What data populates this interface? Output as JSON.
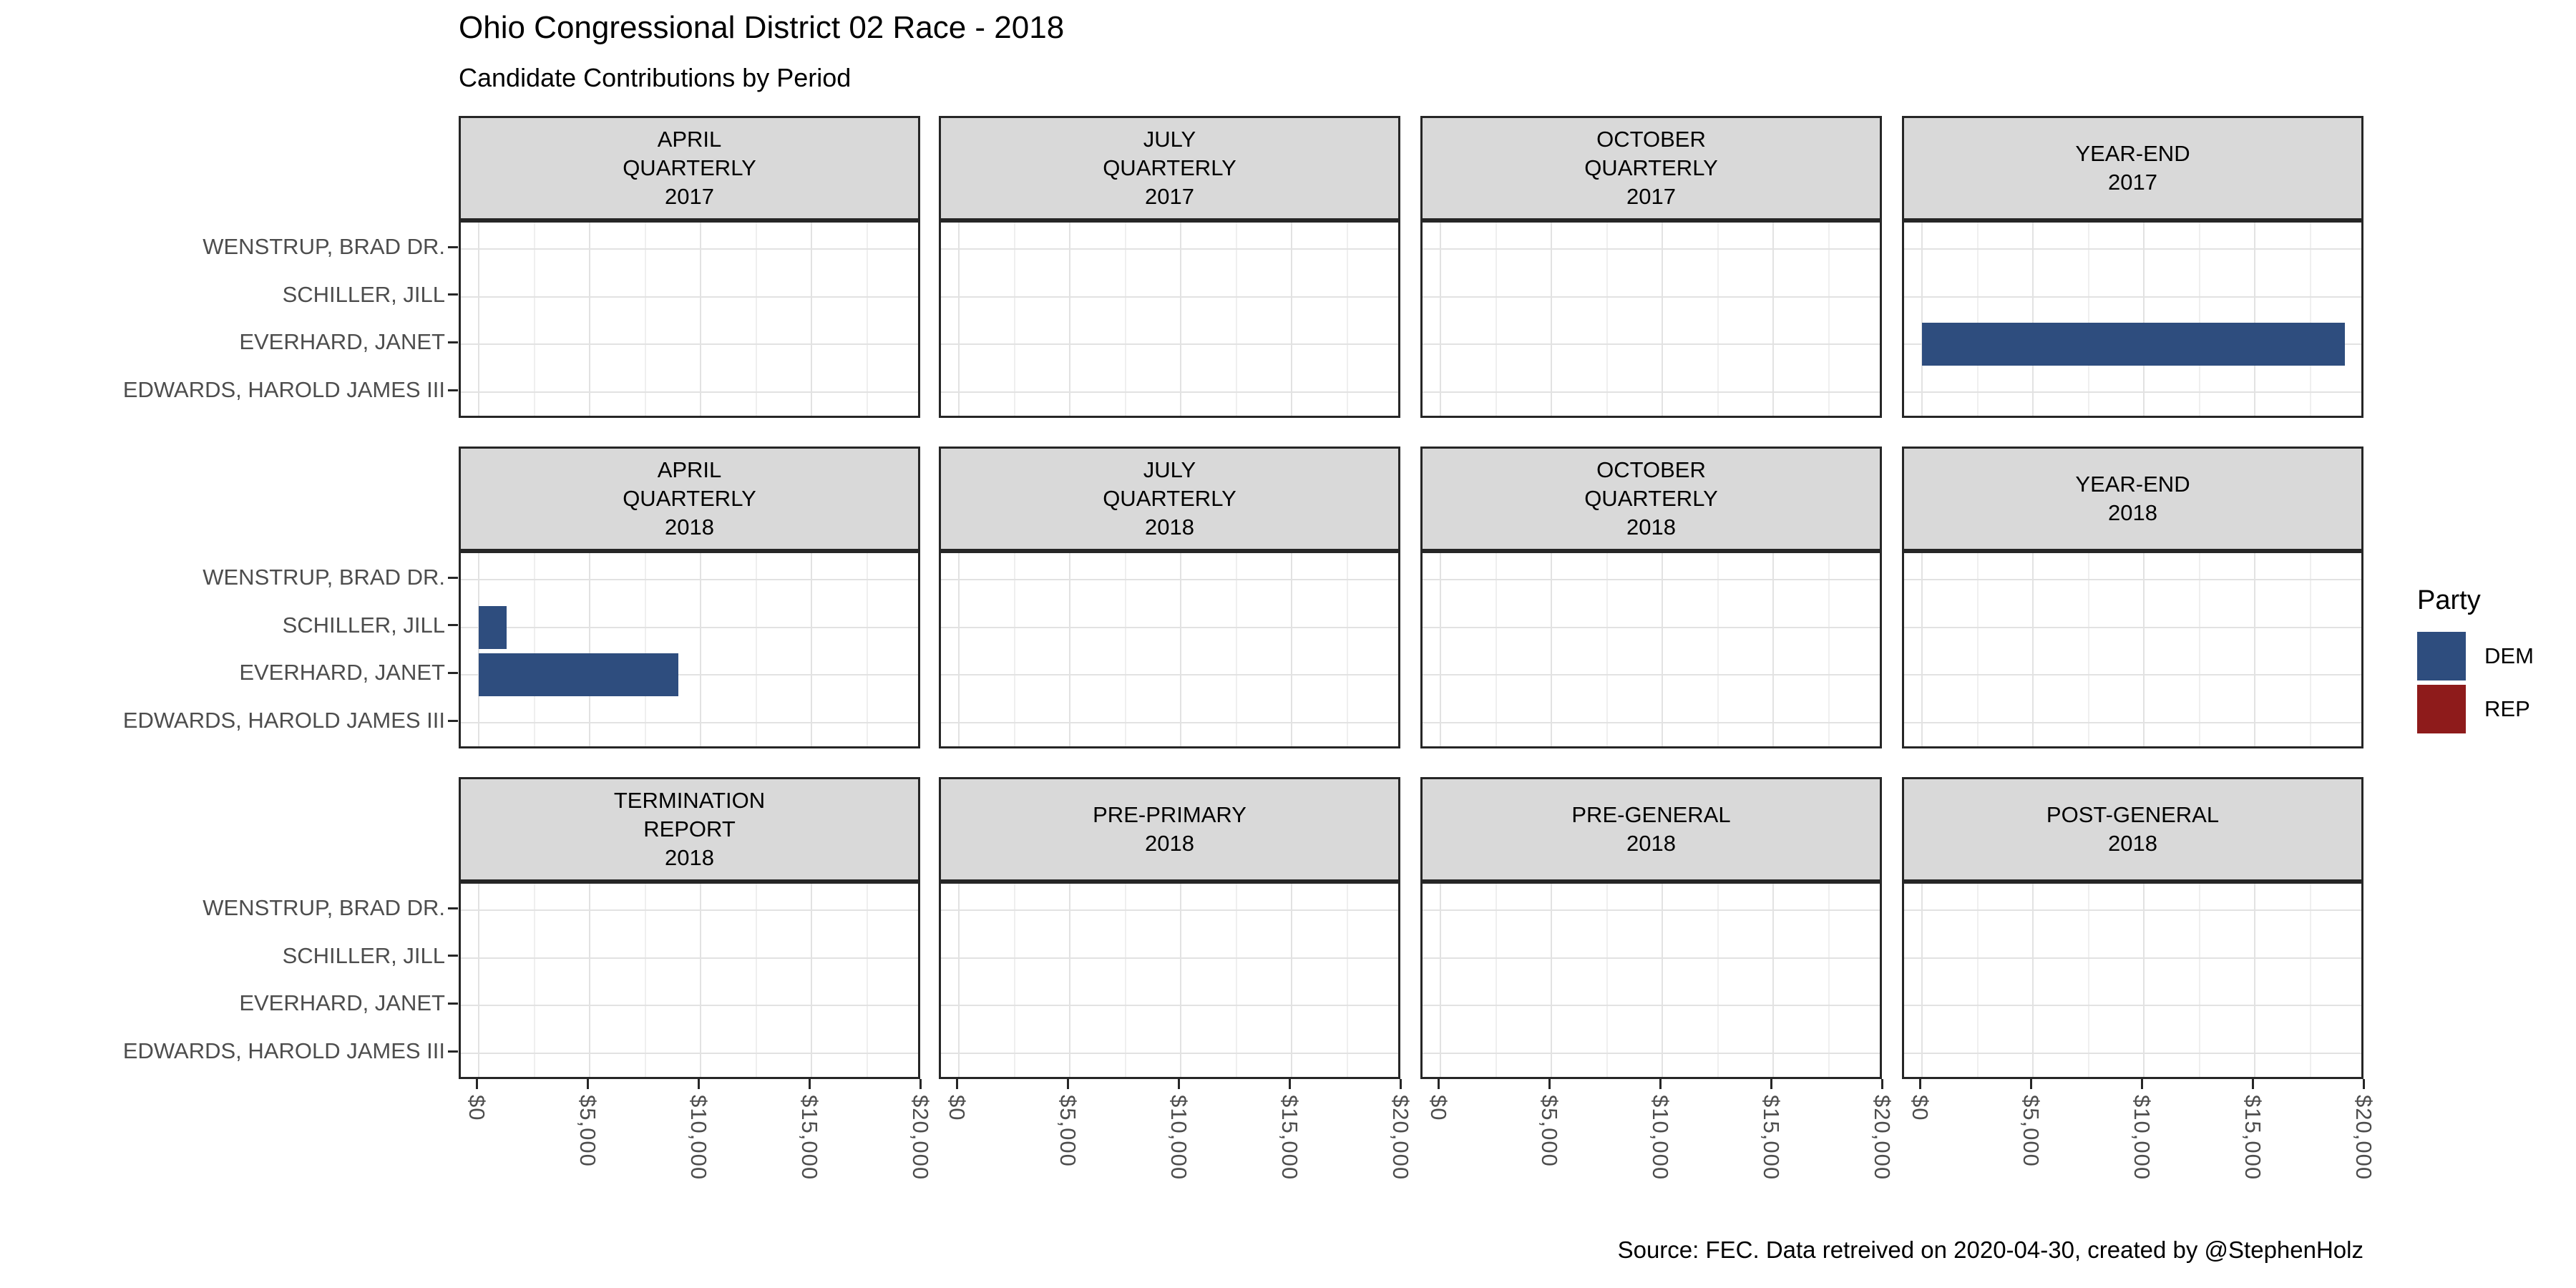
{
  "title": "Ohio Congressional District 02 Race - 2018",
  "subtitle": "Candidate Contributions by Period",
  "caption": "Source: FEC. Data retreived on 2020-04-30, created by @StephenHolz",
  "legend": {
    "title": "Party",
    "items": [
      {
        "label": "DEM",
        "color": "#2E4D7E"
      },
      {
        "label": "REP",
        "color": "#8E1B1B"
      }
    ]
  },
  "chart_data": {
    "type": "bar",
    "orientation": "horizontal",
    "title": "Ohio Congressional District 02 Race - 2018",
    "subtitle": "Candidate Contributions by Period",
    "candidates": [
      "WENSTRUP, BRAD DR.",
      "SCHILLER, JILL",
      "EVERHARD, JANET",
      "EDWARDS, HAROLD JAMES III"
    ],
    "x_axis": {
      "tick_labels": [
        "$0",
        "$5,000",
        "$10,000",
        "$15,000",
        "$20,000"
      ],
      "tick_values": [
        0,
        5000,
        10000,
        15000,
        20000
      ],
      "range": [
        0,
        20000
      ],
      "minor_gridline_interval": 2500
    },
    "legend_position": "right",
    "party_colors": {
      "DEM": "#2E4D7E",
      "REP": "#8E1B1B"
    },
    "facet_grid": {
      "rows": 3,
      "cols": 4
    },
    "facets": [
      {
        "label_lines": [
          "APRIL",
          "QUARTERLY",
          "2017"
        ],
        "row": 0,
        "col": 0,
        "bars": []
      },
      {
        "label_lines": [
          "JULY",
          "QUARTERLY",
          "2017"
        ],
        "row": 0,
        "col": 1,
        "bars": []
      },
      {
        "label_lines": [
          "OCTOBER",
          "QUARTERLY",
          "2017"
        ],
        "row": 0,
        "col": 2,
        "bars": []
      },
      {
        "label_lines": [
          "YEAR-END",
          "2017"
        ],
        "row": 0,
        "col": 3,
        "bars": [
          {
            "candidate": "EVERHARD, JANET",
            "party": "DEM",
            "value": 19050
          }
        ]
      },
      {
        "label_lines": [
          "APRIL",
          "QUARTERLY",
          "2018"
        ],
        "row": 1,
        "col": 0,
        "bars": [
          {
            "candidate": "SCHILLER, JILL",
            "party": "DEM",
            "value": 1250
          },
          {
            "candidate": "EVERHARD, JANET",
            "party": "DEM",
            "value": 9000
          }
        ]
      },
      {
        "label_lines": [
          "JULY",
          "QUARTERLY",
          "2018"
        ],
        "row": 1,
        "col": 1,
        "bars": []
      },
      {
        "label_lines": [
          "OCTOBER",
          "QUARTERLY",
          "2018"
        ],
        "row": 1,
        "col": 2,
        "bars": []
      },
      {
        "label_lines": [
          "YEAR-END",
          "2018"
        ],
        "row": 1,
        "col": 3,
        "bars": []
      },
      {
        "label_lines": [
          "TERMINATION",
          "REPORT",
          "2018"
        ],
        "row": 2,
        "col": 0,
        "bars": []
      },
      {
        "label_lines": [
          "PRE-PRIMARY",
          "2018"
        ],
        "row": 2,
        "col": 1,
        "bars": []
      },
      {
        "label_lines": [
          "PRE-GENERAL",
          "2018"
        ],
        "row": 2,
        "col": 2,
        "bars": []
      },
      {
        "label_lines": [
          "POST-GENERAL",
          "2018"
        ],
        "row": 2,
        "col": 3,
        "bars": []
      }
    ],
    "styles": {
      "strip_fill": "#D9D9D9",
      "panel_border": "#262626",
      "grid_major": "#E2E2E2",
      "grid_minor": "#EFEFEF",
      "axis_text_color": "#4D4D4D"
    }
  }
}
